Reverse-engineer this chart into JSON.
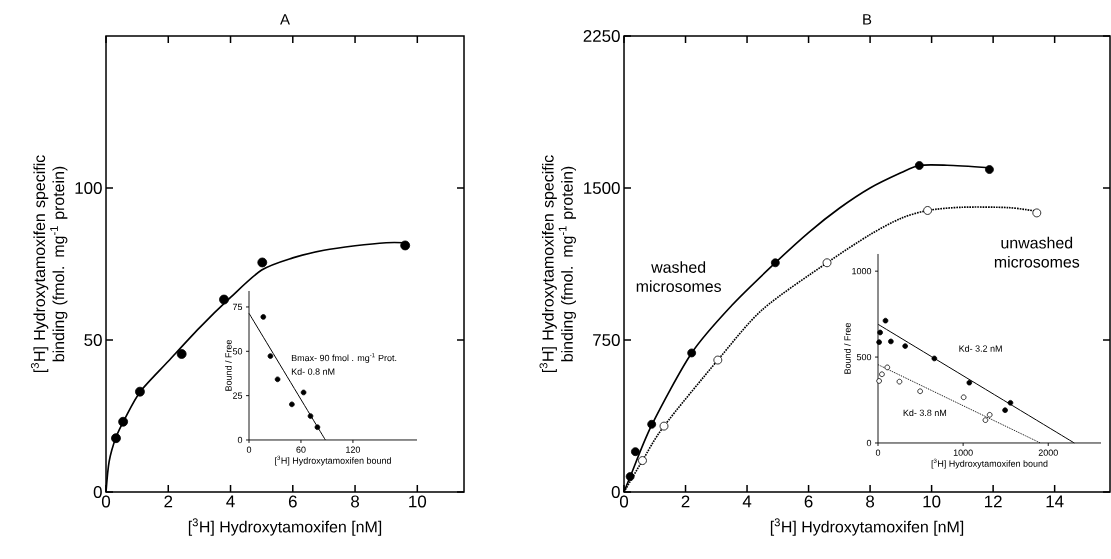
{
  "chart_data": [
    {
      "type": "scatter",
      "title": "A",
      "xlabel": "[$^{3}$H] Hydroxytamoxifen [nM]",
      "ylabel": "[$^{3}$H] Hydroxytamoxifen specific binding (fmol. mg$^{-1}$ protein)",
      "xlim": [
        0,
        11.5
      ],
      "ylim": [
        0,
        150
      ],
      "xticks": [
        0,
        2,
        4,
        6,
        8,
        10
      ],
      "yticks": [
        0,
        50,
        100
      ],
      "grid": false,
      "series": [
        {
          "marker": "circle",
          "color": "#000000",
          "x": [
            0.32,
            0.55,
            1.09,
            2.43,
            3.79,
            5.02,
            9.61
          ],
          "values": [
            17.7,
            23.1,
            33.0,
            45.4,
            63.3,
            75.5,
            81.1
          ]
        },
        {
          "type": "line",
          "marker": "none",
          "line_style": "solid",
          "color": "#000000",
          "x": [
            0,
            0.1,
            0.32,
            0.6,
            1.1,
            2,
            3,
            4,
            5,
            6,
            7,
            8,
            9,
            9.6
          ],
          "values": [
            0,
            10,
            18,
            24,
            33,
            43,
            54,
            64,
            73,
            77,
            79.5,
            81,
            82,
            82
          ]
        }
      ]
    },
    {
      "type": "scatter",
      "xlabel": "[$^{3}$H] Hydroxytamoxifen bound",
      "ylabel": "Bound / Free",
      "xlim": [
        0,
        194
      ],
      "ylim": [
        0,
        84
      ],
      "xticks": [
        0,
        60,
        120
      ],
      "yticks": [
        0,
        25,
        50,
        75
      ],
      "grid": false,
      "annotations": [
        "Bmax- 90 fmol . mg$^{-1}$ Prot.",
        "Kd- 0.8 nM"
      ],
      "series": [
        {
          "marker": "circle",
          "color": "#000000",
          "x": [
            16.5,
            24.7,
            33,
            49.5,
            63,
            71,
            79
          ],
          "values": [
            69.4,
            47.3,
            34.2,
            20.1,
            26.8,
            13.5,
            7.2
          ]
        },
        {
          "type": "line",
          "marker": "none",
          "line_style": "solid",
          "color": "#000000",
          "x": [
            0,
            88.2
          ],
          "values": [
            71.4,
            0
          ]
        }
      ]
    },
    {
      "type": "scatter",
      "title": "B",
      "xlabel": "[$^{3}$H] Hydroxytamoxifen [nM]",
      "ylabel": "[$^{3}$H] Hydroxytamoxifen specific binding (fmol. mg$^{-1}$ protein)",
      "xlim": [
        0,
        15.8
      ],
      "ylim": [
        0,
        2250
      ],
      "xticks": [
        0,
        2,
        4,
        6,
        8,
        10,
        12,
        14
      ],
      "yticks": [
        0,
        750,
        1500,
        2250
      ],
      "grid": false,
      "series": [
        {
          "marker": "circle",
          "color": "#000000",
          "x": [
            0.2,
            0.37,
            0.9,
            2.2,
            4.92,
            9.6,
            11.88
          ],
          "values": [
            76,
            199,
            334,
            686,
            1131,
            1611,
            1591
          ]
        },
        {
          "type": "line",
          "name": "washed microsomes",
          "marker": "none",
          "line_style": "solid",
          "color": "#000000",
          "x": [
            0,
            0.2,
            0.9,
            2.2,
            3.5,
            4.92,
            6,
            7,
            8,
            9,
            9.6,
            10.5,
            11.88
          ],
          "values": [
            0,
            75,
            330,
            686,
            920,
            1131,
            1280,
            1400,
            1500,
            1575,
            1611,
            1612,
            1600
          ]
        },
        {
          "marker": "circle",
          "color": "#ffffff",
          "x": [
            0.6,
            1.3,
            3.05,
            6.6,
            9.87,
            13.42
          ],
          "values": [
            155,
            325,
            651,
            1131,
            1389,
            1377
          ]
        },
        {
          "type": "line",
          "name": "unwashed microsomes",
          "marker": "none",
          "line_style": "dotted",
          "color": "#000000",
          "x": [
            0,
            0.6,
            1.3,
            3.05,
            4.5,
            6.6,
            8,
            9,
            9.87,
            11,
            12.5,
            13.42
          ],
          "values": [
            0,
            155,
            325,
            651,
            900,
            1131,
            1270,
            1350,
            1389,
            1405,
            1403,
            1385
          ]
        }
      ]
    },
    {
      "type": "scatter",
      "xlabel": "[$^{3}$H] Hydroxytamoxifen bound",
      "ylabel": "Bound / Free",
      "xlim": [
        0,
        2620
      ],
      "ylim": [
        0,
        1100
      ],
      "xticks": [
        0,
        1000,
        2000
      ],
      "yticks": [
        0,
        500,
        1000
      ],
      "grid": false,
      "annotations": [
        "Kd- 3.2 nM",
        "Kd- 3.8 nM"
      ],
      "series": [
        {
          "marker": "circle",
          "color": "#000000",
          "x": [
            13,
            25,
            88,
            151,
            319,
            662,
            1073,
            1493,
            1556
          ],
          "values": [
            587,
            643,
            712,
            591,
            564,
            492,
            351,
            191,
            234
          ]
        },
        {
          "type": "line",
          "marker": "none",
          "line_style": "solid",
          "color": "#000000",
          "x": [
            0,
            2306
          ],
          "values": [
            691,
            0
          ]
        },
        {
          "marker": "circle",
          "color": "#ffffff",
          "x": [
            13,
            46,
            109,
            252,
            495,
            1006,
            1262,
            1312
          ],
          "values": [
            361,
            400,
            440,
            357,
            301,
            266,
            133,
            164
          ]
        },
        {
          "type": "line",
          "marker": "none",
          "line_style": "dotted",
          "color": "#000000",
          "x": [
            0,
            1908
          ],
          "values": [
            456,
            0
          ]
        }
      ]
    }
  ]
}
